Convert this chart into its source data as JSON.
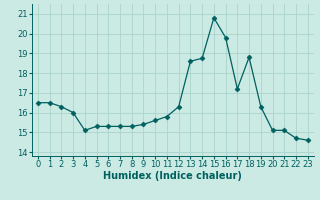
{
  "x": [
    0,
    1,
    2,
    3,
    4,
    5,
    6,
    7,
    8,
    9,
    10,
    11,
    12,
    13,
    14,
    15,
    16,
    17,
    18,
    19,
    20,
    21,
    22,
    23
  ],
  "y": [
    16.5,
    16.5,
    16.3,
    16.0,
    15.1,
    15.3,
    15.3,
    15.3,
    15.3,
    15.4,
    15.6,
    15.8,
    16.3,
    18.6,
    18.75,
    20.8,
    19.8,
    17.2,
    18.8,
    16.3,
    15.1,
    15.1,
    14.7,
    14.6
  ],
  "line_color": "#006060",
  "marker": "D",
  "marker_size": 2.5,
  "bg_color": "#cceae4",
  "grid_color": "#aad4cc",
  "xlabel": "Humidex (Indice chaleur)",
  "xlim": [
    -0.5,
    23.5
  ],
  "ylim": [
    13.8,
    21.5
  ],
  "yticks": [
    14,
    15,
    16,
    17,
    18,
    19,
    20,
    21
  ],
  "xticks": [
    0,
    1,
    2,
    3,
    4,
    5,
    6,
    7,
    8,
    9,
    10,
    11,
    12,
    13,
    14,
    15,
    16,
    17,
    18,
    19,
    20,
    21,
    22,
    23
  ],
  "xlabel_fontsize": 7,
  "tick_fontsize": 6
}
